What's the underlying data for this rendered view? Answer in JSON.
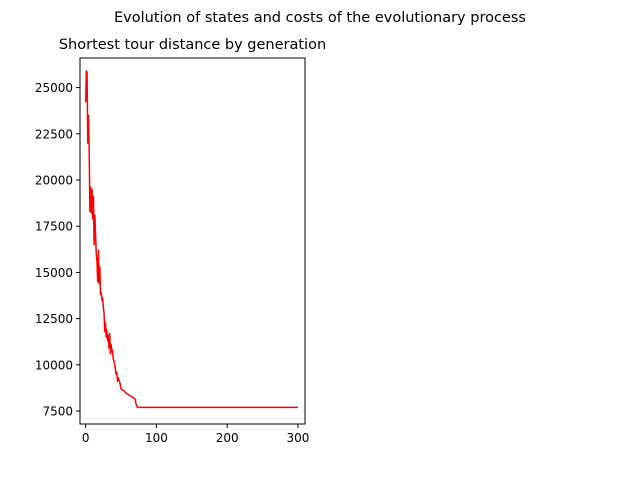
{
  "figure": {
    "suptitle": "Evolution of states and costs of the evolutionary process"
  },
  "chart_data": {
    "type": "line",
    "title": "Shortest tour distance by generation",
    "xlabel": "",
    "ylabel": "",
    "xlim": [
      -8,
      310
    ],
    "ylim": [
      6800,
      26600
    ],
    "x_ticks": [
      0,
      100,
      200,
      300
    ],
    "x_tick_labels": [
      "0",
      "100",
      "200",
      "300"
    ],
    "y_ticks": [
      7500,
      10000,
      12500,
      15000,
      17500,
      20000,
      22500,
      25000
    ],
    "y_tick_labels": [
      "7500",
      "10000",
      "12500",
      "15000",
      "17500",
      "20000",
      "22500",
      "25000"
    ],
    "grid": false,
    "legend": "none",
    "series": [
      {
        "color": "#ff0000",
        "x": [
          0,
          1,
          2,
          3,
          4,
          5,
          6,
          7,
          8,
          9,
          10,
          11,
          12,
          13,
          14,
          15,
          16,
          17,
          18,
          19,
          20,
          21,
          22,
          23,
          24,
          25,
          26,
          27,
          28,
          29,
          30,
          31,
          32,
          33,
          34,
          35,
          36,
          37,
          38,
          39,
          40,
          41,
          42,
          43,
          44,
          45,
          46,
          47,
          48,
          49,
          50,
          52,
          54,
          56,
          58,
          60,
          62,
          64,
          66,
          68,
          70,
          71,
          72,
          73,
          74,
          75,
          80,
          100,
          150,
          200,
          250,
          300
        ],
        "values": [
          24200,
          25900,
          25800,
          22000,
          23500,
          21500,
          18300,
          19600,
          18200,
          19500,
          17900,
          19100,
          16500,
          18100,
          17000,
          16000,
          15600,
          14500,
          16200,
          14400,
          15300,
          13800,
          13900,
          13500,
          13600,
          13100,
          12800,
          11800,
          12300,
          11500,
          11900,
          11300,
          11600,
          10900,
          11700,
          10600,
          11100,
          10700,
          10800,
          10300,
          10200,
          10000,
          9800,
          9500,
          9600,
          9100,
          9300,
          9200,
          9100,
          8900,
          8700,
          8650,
          8600,
          8500,
          8450,
          8400,
          8350,
          8300,
          8250,
          8200,
          8150,
          7900,
          7800,
          7720,
          7700,
          7700,
          7700,
          7700,
          7700,
          7700,
          7700,
          7700
        ]
      }
    ]
  }
}
